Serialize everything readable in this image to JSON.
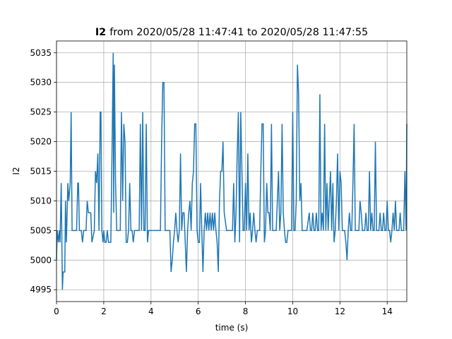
{
  "chart_data": {
    "type": "line",
    "title": [
      "I2",
      "from 2020/05/28 11:47:41 to 2020/05/28 11:47:55"
    ],
    "xlabel": "time (s)",
    "ylabel": "I2",
    "xlim": [
      0,
      14.83
    ],
    "ylim": [
      4993,
      5037
    ],
    "xticks": [
      0,
      2,
      4,
      6,
      8,
      10,
      12,
      14
    ],
    "yticks": [
      4995,
      5000,
      5005,
      5010,
      5015,
      5020,
      5025,
      5030,
      5035
    ],
    "grid": true,
    "series": [
      {
        "name": "I2",
        "color": "#1f77b4",
        "x": [
          0,
          0.03,
          0.08,
          0.12,
          0.15,
          0.2,
          0.25,
          0.28,
          0.35,
          0.38,
          0.42,
          0.48,
          0.52,
          0.58,
          0.62,
          0.66,
          0.75,
          0.85,
          0.9,
          0.93,
          0.97,
          1.05,
          1.1,
          1.15,
          1.25,
          1.3,
          1.35,
          1.45,
          1.5,
          1.6,
          1.65,
          1.7,
          1.75,
          1.8,
          1.85,
          1.88,
          1.92,
          1.97,
          2.0,
          2.05,
          2.1,
          2.15,
          2.2,
          2.3,
          2.35,
          2.4,
          2.42,
          2.45,
          2.5,
          2.55,
          2.6,
          2.7,
          2.75,
          2.8,
          2.85,
          2.9,
          2.95,
          3.0,
          3.05,
          3.1,
          3.15,
          3.2,
          3.25,
          3.3,
          3.4,
          3.5,
          3.55,
          3.6,
          3.65,
          3.7,
          3.75,
          3.8,
          3.85,
          3.9,
          4.0,
          4.1,
          4.2,
          4.3,
          4.35,
          4.4,
          4.45,
          4.5,
          4.55,
          4.6,
          4.7,
          4.8,
          4.85,
          4.9,
          4.95,
          5.0,
          5.05,
          5.1,
          5.15,
          5.2,
          5.25,
          5.3,
          5.35,
          5.4,
          5.45,
          5.5,
          5.55,
          5.6,
          5.65,
          5.7,
          5.75,
          5.8,
          5.85,
          5.9,
          5.95,
          6.0,
          6.05,
          6.1,
          6.15,
          6.2,
          6.25,
          6.3,
          6.35,
          6.4,
          6.45,
          6.5,
          6.55,
          6.6,
          6.65,
          6.7,
          6.75,
          6.8,
          6.85,
          6.9,
          6.95,
          7.0,
          7.05,
          7.1,
          7.2,
          7.3,
          7.4,
          7.45,
          7.5,
          7.55,
          7.6,
          7.65,
          7.7,
          7.75,
          7.8,
          7.85,
          7.9,
          7.95,
          8.0,
          8.05,
          8.1,
          8.15,
          8.2,
          8.25,
          8.3,
          8.35,
          8.4,
          8.45,
          8.5,
          8.55,
          8.6,
          8.65,
          8.7,
          8.75,
          8.8,
          8.85,
          8.9,
          8.95,
          9.0,
          9.05,
          9.1,
          9.15,
          9.2,
          9.3,
          9.4,
          9.45,
          9.5,
          9.55,
          9.6,
          9.65,
          9.7,
          9.75,
          9.8,
          9.85,
          9.9,
          9.95,
          10.0,
          10.05,
          10.1,
          10.15,
          10.2,
          10.25,
          10.3,
          10.35,
          10.4,
          10.5,
          10.6,
          10.7,
          10.75,
          10.8,
          10.85,
          10.9,
          10.95,
          11.0,
          11.05,
          11.1,
          11.15,
          11.2,
          11.25,
          11.3,
          11.35,
          11.4,
          11.45,
          11.5,
          11.55,
          11.6,
          11.65,
          11.7,
          11.75,
          11.8,
          11.85,
          11.9,
          11.95,
          12.0,
          12.05,
          12.1,
          12.15,
          12.2,
          12.25,
          12.3,
          12.35,
          12.4,
          12.45,
          12.5,
          12.55,
          12.6,
          12.65,
          12.7,
          12.75,
          12.8,
          12.85,
          12.9,
          12.95,
          13.0,
          13.05,
          13.1,
          13.15,
          13.2,
          13.25,
          13.3,
          13.35,
          13.4,
          13.45,
          13.5,
          13.55,
          13.6,
          13.65,
          13.7,
          13.75,
          13.8,
          13.85,
          13.9,
          13.95,
          14.0,
          14.05,
          14.1,
          14.15,
          14.2,
          14.25,
          14.3,
          14.35,
          14.4,
          14.45,
          14.5,
          14.55,
          14.6,
          14.7,
          14.75,
          14.8,
          14.83
        ],
        "values": [
          5000,
          5005,
          5003,
          5005,
          5003,
          5013,
          4995,
          4998,
          4998,
          5010,
          5003,
          5013,
          5010,
          5013,
          5025,
          5005,
          5005,
          5005,
          5013,
          5013,
          5005,
          5005,
          5003,
          5005,
          5005,
          5010,
          5008,
          5008,
          5003,
          5005,
          5015,
          5013,
          5018,
          5005,
          5025,
          5025,
          5005,
          5003,
          5005,
          5003,
          5003,
          5005,
          5003,
          5003,
          5018,
          5035,
          5008,
          5033,
          5013,
          5005,
          5005,
          5005,
          5025,
          5010,
          5023,
          5020,
          5003,
          5003,
          5005,
          5013,
          5005,
          5005,
          5003,
          5005,
          5005,
          5005,
          5023,
          5005,
          5025,
          5005,
          5005,
          5023,
          5003,
          5005,
          5005,
          5005,
          5005,
          5005,
          5005,
          5005,
          5020,
          5030,
          5030,
          5005,
          5005,
          5005,
          4998,
          5000,
          5003,
          5005,
          5008,
          5005,
          5003,
          5005,
          5018,
          5005,
          5008,
          5008,
          5003,
          4998,
          5005,
          5008,
          5010,
          5005,
          5013,
          5015,
          5023,
          5023,
          5005,
          5003,
          5003,
          5013,
          5005,
          4998,
          5005,
          5008,
          5005,
          5008,
          5005,
          5008,
          5005,
          5008,
          5005,
          5008,
          5005,
          5003,
          4998,
          5010,
          5015,
          5015,
          5020,
          5008,
          5005,
          5005,
          5005,
          5005,
          5013,
          5003,
          5008,
          5018,
          5025,
          5003,
          5025,
          5015,
          5005,
          5005,
          5013,
          5005,
          5018,
          5005,
          5008,
          5003,
          5005,
          5008,
          5005,
          5003,
          5005,
          5005,
          5005,
          5015,
          5023,
          5023,
          5003,
          5005,
          5013,
          5008,
          5008,
          5005,
          5023,
          5005,
          5005,
          5005,
          5015,
          5005,
          5008,
          5023,
          5008,
          5005,
          5003,
          5003,
          5005,
          5005,
          5005,
          5005,
          5025,
          5005,
          5005,
          5010,
          5033,
          5028,
          5010,
          5013,
          5005,
          5005,
          5005,
          5008,
          5005,
          5005,
          5008,
          5005,
          5005,
          5008,
          5005,
          5005,
          5028,
          5005,
          5008,
          5005,
          5023,
          5005,
          5013,
          5005,
          5010,
          5015,
          5005,
          5013,
          5003,
          5005,
          5010,
          5018,
          5005,
          5015,
          5013,
          5005,
          5005,
          5005,
          5003,
          5000,
          5005,
          5008,
          5005,
          5005,
          5013,
          5023,
          5005,
          5005,
          5005,
          5005,
          5010,
          5008,
          5005,
          5005,
          5005,
          5008,
          5005,
          5005,
          5015,
          5005,
          5008,
          5005,
          5005,
          5020,
          5005,
          5005,
          5005,
          5008,
          5005,
          5005,
          5008,
          5005,
          5005,
          5010,
          5005,
          5005,
          5003,
          5005,
          5008,
          5005,
          5010,
          5005,
          5005,
          5005,
          5008,
          5005,
          5005,
          5015,
          5005,
          5023
        ]
      }
    ]
  }
}
